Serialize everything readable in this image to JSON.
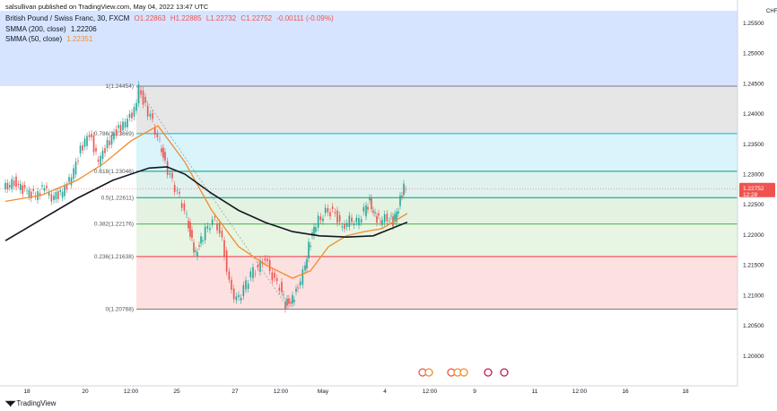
{
  "header": {
    "attribution": "salsullivan published on TradingView.com, May 04, 2022 13:47 UTC",
    "symbol": "British Pound / Swiss Franc, 30, FXCM",
    "ohlc": {
      "o": "O1.22863",
      "h": "H1.22885",
      "l": "L1.22732",
      "c": "C1.22752",
      "chg": "-0.00111 (-0.09%)"
    },
    "sma200": {
      "label": "SMMA (200, close)",
      "value": "1.22206"
    },
    "sma50": {
      "label": "SMMA (50, close)",
      "value": "1.22351"
    }
  },
  "price_axis": {
    "currency": "CHF",
    "current_price": "1.22752",
    "countdown": "12:28"
  },
  "footer": {
    "logo": "TradingView"
  },
  "colors": {
    "up": "#26a69a",
    "down": "#ef5350",
    "sma200": "#131722",
    "sma50": "#f08c2e",
    "current_badge": "#ef5350"
  },
  "chart_data": {
    "type": "candlestick",
    "ylim": [
      1.195,
      1.257
    ],
    "y_ticks": [
      "1.25500",
      "1.25000",
      "1.24500",
      "1.24000",
      "1.23500",
      "1.23000",
      "1.22500",
      "1.22000",
      "1.21500",
      "1.21000",
      "1.20500",
      "1.20000"
    ],
    "x_ticks": [
      "18",
      "20",
      "12:00",
      "25",
      "27",
      "12:00",
      "May",
      "4",
      "12:00",
      "9",
      "11",
      "12:00",
      "16",
      "18"
    ],
    "fib_levels": [
      {
        "ratio": "1",
        "value": 1.24454,
        "label": "1(1.24454)",
        "color": "#787b86"
      },
      {
        "ratio": "0.786",
        "value": 1.23669,
        "label": "0.786(1.23669)",
        "color": "#00bcd4"
      },
      {
        "ratio": "0.618",
        "value": 1.23046,
        "label": "0.618(1.23046)",
        "color": "#089981"
      },
      {
        "ratio": "0.5",
        "value": 1.22611,
        "label": "0.5(1.22611)",
        "color": "#089981"
      },
      {
        "ratio": "0.382",
        "value": 1.22176,
        "label": "0.382(1.22176)",
        "color": "#4caf50"
      },
      {
        "ratio": "0.236",
        "value": 1.21638,
        "label": "0.236(1.21638)",
        "color": "#f23645"
      },
      {
        "ratio": "0",
        "value": 1.20768,
        "label": "0(1.20768)",
        "color": "#787b86"
      }
    ],
    "price_path": [
      [
        0,
        1.2275
      ],
      [
        12,
        1.2288
      ],
      [
        24,
        1.2272
      ],
      [
        36,
        1.2265
      ],
      [
        46,
        1.2278
      ],
      [
        54,
        1.2262
      ],
      [
        66,
        1.227
      ],
      [
        76,
        1.2295
      ],
      [
        86,
        1.234
      ],
      [
        96,
        1.2368
      ],
      [
        106,
        1.232
      ],
      [
        116,
        1.235
      ],
      [
        126,
        1.2372
      ],
      [
        136,
        1.2385
      ],
      [
        146,
        1.2405
      ],
      [
        151,
        1.2445
      ],
      [
        156,
        1.242
      ],
      [
        164,
        1.2395
      ],
      [
        172,
        1.236
      ],
      [
        178,
        1.233
      ],
      [
        186,
        1.2295
      ],
      [
        194,
        1.227
      ],
      [
        202,
        1.224
      ],
      [
        208,
        1.22
      ],
      [
        214,
        1.2168
      ],
      [
        220,
        1.219
      ],
      [
        228,
        1.2215
      ],
      [
        236,
        1.2225
      ],
      [
        244,
        1.219
      ],
      [
        252,
        1.2118
      ],
      [
        260,
        1.209
      ],
      [
        268,
        1.211
      ],
      [
        276,
        1.2135
      ],
      [
        284,
        1.2145
      ],
      [
        292,
        1.216
      ],
      [
        300,
        1.213
      ],
      [
        308,
        1.2115
      ],
      [
        314,
        1.2085
      ],
      [
        320,
        1.209
      ],
      [
        326,
        1.2105
      ],
      [
        334,
        1.2135
      ],
      [
        340,
        1.218
      ],
      [
        346,
        1.221
      ],
      [
        354,
        1.223
      ],
      [
        362,
        1.224
      ],
      [
        370,
        1.2235
      ],
      [
        378,
        1.221
      ],
      [
        386,
        1.2225
      ],
      [
        394,
        1.222
      ],
      [
        402,
        1.2238
      ],
      [
        408,
        1.2255
      ],
      [
        414,
        1.223
      ],
      [
        420,
        1.2222
      ],
      [
        428,
        1.223
      ],
      [
        434,
        1.222
      ],
      [
        440,
        1.2245
      ],
      [
        446,
        1.2282
      ],
      [
        449,
        1.22752
      ]
    ],
    "sma50_path": [
      [
        0,
        1.2255
      ],
      [
        40,
        1.2265
      ],
      [
        80,
        1.229
      ],
      [
        110,
        1.2318
      ],
      [
        140,
        1.2355
      ],
      [
        170,
        1.238
      ],
      [
        200,
        1.232
      ],
      [
        230,
        1.224
      ],
      [
        260,
        1.218
      ],
      [
        290,
        1.215
      ],
      [
        320,
        1.2128
      ],
      [
        340,
        1.214
      ],
      [
        360,
        1.218
      ],
      [
        380,
        1.2198
      ],
      [
        400,
        1.2205
      ],
      [
        420,
        1.221
      ],
      [
        448,
        1.22351
      ]
    ],
    "sma200_path": [
      [
        0,
        1.219
      ],
      [
        40,
        1.2225
      ],
      [
        80,
        1.226
      ],
      [
        120,
        1.229
      ],
      [
        160,
        1.231
      ],
      [
        180,
        1.2312
      ],
      [
        200,
        1.23
      ],
      [
        230,
        1.2268
      ],
      [
        260,
        1.224
      ],
      [
        290,
        1.222
      ],
      [
        320,
        1.2205
      ],
      [
        350,
        1.2198
      ],
      [
        380,
        1.2196
      ],
      [
        410,
        1.2198
      ],
      [
        448,
        1.22206
      ]
    ]
  }
}
